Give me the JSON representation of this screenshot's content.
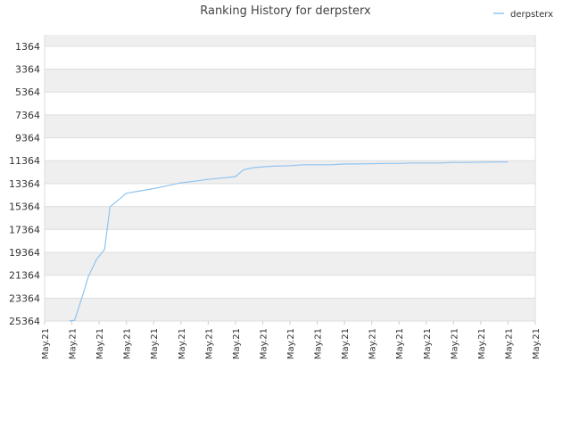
{
  "chart_data": {
    "type": "line",
    "title": "Ranking History for derpsterx",
    "legend_position": "top-right",
    "grid": true,
    "y_inverted": true,
    "ylim": [
      364,
      25364
    ],
    "y_ticks": [
      "1364",
      "3364",
      "5364",
      "7364",
      "9364",
      "11364",
      "13364",
      "15364",
      "17364",
      "19364",
      "21364",
      "23364",
      "25364"
    ],
    "x_ticks": [
      "May.21",
      "May.21",
      "May.21",
      "May.21",
      "May.21",
      "May.21",
      "May.21",
      "May.21",
      "May.21",
      "May.21",
      "May.21",
      "May.21",
      "May.21",
      "May.21",
      "May.21",
      "May.21",
      "May.21",
      "May.21",
      "May.21"
    ],
    "xlim": [
      0,
      18
    ],
    "series": [
      {
        "name": "derpsterx",
        "color": "#90c4f0",
        "x": [
          0.9,
          1.1,
          1.4,
          1.6,
          1.9,
          2.2,
          2.4,
          2.6,
          3.0,
          3.5,
          4.0,
          4.5,
          5.0,
          5.5,
          6.0,
          6.5,
          7.0,
          7.3,
          7.7,
          8.3,
          9.0,
          9.5,
          10.5,
          11.0,
          11.5,
          12.5,
          13.0,
          13.5,
          14.5,
          15.0,
          15.5,
          16.5,
          17.0
        ],
        "y": [
          25364,
          25300,
          23100,
          21500,
          20000,
          19100,
          15400,
          15000,
          14200,
          14000,
          13800,
          13550,
          13300,
          13150,
          13000,
          12880,
          12750,
          12150,
          11960,
          11850,
          11800,
          11720,
          11720,
          11650,
          11650,
          11600,
          11600,
          11560,
          11560,
          11520,
          11520,
          11480,
          11480
        ]
      }
    ]
  }
}
